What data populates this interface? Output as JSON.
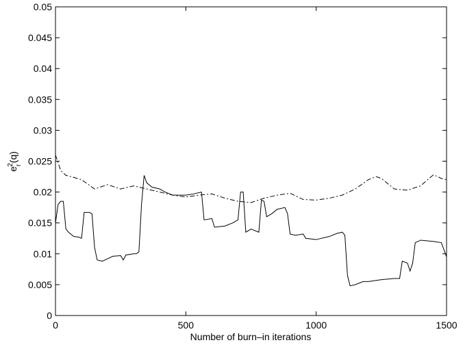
{
  "chart_data": {
    "type": "line",
    "x_label": "Number of burn–in iterations",
    "y_label": {
      "base": "e",
      "subscript": "r",
      "superscript": "2",
      "argument": "(q)"
    },
    "xlim": [
      0,
      1500
    ],
    "xticks": [
      0,
      500,
      1000,
      1500
    ],
    "ylim": [
      0,
      0.05
    ],
    "yticks": [
      0,
      0.005,
      0.01,
      0.015,
      0.02,
      0.025,
      0.03,
      0.035,
      0.04,
      0.045,
      0.05
    ],
    "grid": false,
    "series": [
      {
        "color": "#000000",
        "line_style": "solid",
        "x": [
          0,
          10,
          20,
          30,
          40,
          50,
          70,
          90,
          100,
          110,
          130,
          140,
          150,
          160,
          180,
          200,
          220,
          250,
          260,
          270,
          300,
          310,
          320,
          330,
          340,
          350,
          370,
          400,
          420,
          450,
          480,
          500,
          530,
          560,
          570,
          600,
          610,
          650,
          680,
          700,
          710,
          720,
          730,
          750,
          780,
          790,
          800,
          810,
          830,
          850,
          880,
          890,
          900,
          920,
          950,
          960,
          1000,
          1050,
          1080,
          1100,
          1110,
          1120,
          1130,
          1150,
          1180,
          1200,
          1250,
          1300,
          1320,
          1330,
          1350,
          1360,
          1370,
          1380,
          1400,
          1450,
          1480,
          1500
        ],
        "values": [
          0.015,
          0.018,
          0.0185,
          0.0185,
          0.014,
          0.0135,
          0.0128,
          0.0127,
          0.0125,
          0.0167,
          0.0167,
          0.0165,
          0.011,
          0.009,
          0.0088,
          0.0092,
          0.0096,
          0.0097,
          0.009,
          0.0098,
          0.01,
          0.01,
          0.0103,
          0.018,
          0.0227,
          0.0215,
          0.0208,
          0.0205,
          0.02,
          0.0195,
          0.0195,
          0.0195,
          0.0197,
          0.02,
          0.0155,
          0.0157,
          0.0143,
          0.0145,
          0.015,
          0.0155,
          0.02,
          0.02,
          0.0135,
          0.014,
          0.0135,
          0.0187,
          0.0185,
          0.016,
          0.0165,
          0.0172,
          0.0175,
          0.0165,
          0.0132,
          0.013,
          0.0132,
          0.0125,
          0.0123,
          0.0128,
          0.0133,
          0.0135,
          0.013,
          0.0065,
          0.0048,
          0.005,
          0.0055,
          0.0055,
          0.0058,
          0.006,
          0.006,
          0.0088,
          0.0085,
          0.0072,
          0.0085,
          0.0118,
          0.0122,
          0.012,
          0.0118,
          0.0095
        ]
      },
      {
        "color": "#000000",
        "line_style": "dashdot",
        "x": [
          0,
          20,
          40,
          60,
          100,
          150,
          200,
          250,
          300,
          350,
          400,
          450,
          500,
          550,
          600,
          650,
          700,
          750,
          800,
          850,
          900,
          950,
          1000,
          1050,
          1100,
          1150,
          1200,
          1230,
          1250,
          1300,
          1350,
          1400,
          1450,
          1480,
          1500
        ],
        "values": [
          0.026,
          0.0235,
          0.0227,
          0.0225,
          0.022,
          0.0205,
          0.0212,
          0.0205,
          0.021,
          0.0205,
          0.02,
          0.0195,
          0.0192,
          0.0195,
          0.0197,
          0.019,
          0.0185,
          0.0183,
          0.019,
          0.0195,
          0.0198,
          0.0188,
          0.0187,
          0.019,
          0.0195,
          0.0205,
          0.022,
          0.0225,
          0.0222,
          0.0205,
          0.0203,
          0.021,
          0.0228,
          0.0222,
          0.022
        ]
      }
    ]
  }
}
